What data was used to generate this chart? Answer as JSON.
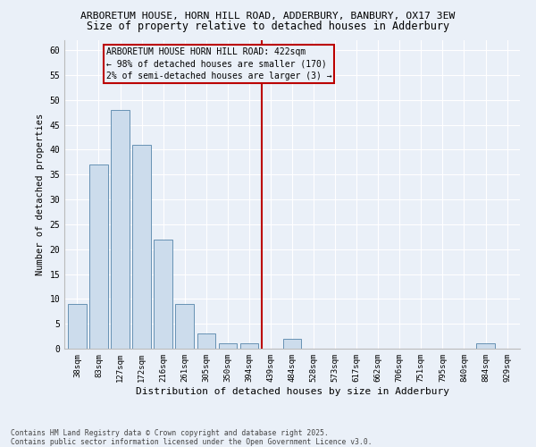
{
  "title1": "ARBORETUM HOUSE, HORN HILL ROAD, ADDERBURY, BANBURY, OX17 3EW",
  "title2": "Size of property relative to detached houses in Adderbury",
  "xlabel": "Distribution of detached houses by size in Adderbury",
  "ylabel": "Number of detached properties",
  "bin_labels": [
    "38sqm",
    "83sqm",
    "127sqm",
    "172sqm",
    "216sqm",
    "261sqm",
    "305sqm",
    "350sqm",
    "394sqm",
    "439sqm",
    "484sqm",
    "528sqm",
    "573sqm",
    "617sqm",
    "662sqm",
    "706sqm",
    "751sqm",
    "795sqm",
    "840sqm",
    "884sqm",
    "929sqm"
  ],
  "bar_values": [
    9,
    37,
    48,
    41,
    22,
    9,
    3,
    1,
    1,
    0,
    2,
    0,
    0,
    0,
    0,
    0,
    0,
    0,
    0,
    1,
    0
  ],
  "bar_color": "#ccdcec",
  "bar_edge_color": "#5585aa",
  "vline_x_index": 8.58,
  "vline_color": "#bb0000",
  "annotation_text": "ARBORETUM HOUSE HORN HILL ROAD: 422sqm\n← 98% of detached houses are smaller (170)\n2% of semi-detached houses are larger (3) →",
  "annotation_box_edgecolor": "#bb0000",
  "ylim": [
    0,
    62
  ],
  "yticks": [
    0,
    5,
    10,
    15,
    20,
    25,
    30,
    35,
    40,
    45,
    50,
    55,
    60
  ],
  "footer1": "Contains HM Land Registry data © Crown copyright and database right 2025.",
  "footer2": "Contains public sector information licensed under the Open Government Licence v3.0.",
  "bg_color": "#eaf0f8",
  "grid_color": "#ffffff",
  "title1_fontsize": 8.2,
  "title2_fontsize": 8.5,
  "tick_fontsize": 6.5,
  "ylabel_fontsize": 7.5,
  "xlabel_fontsize": 8.0,
  "annot_fontsize": 7.0,
  "footer_fontsize": 5.8
}
